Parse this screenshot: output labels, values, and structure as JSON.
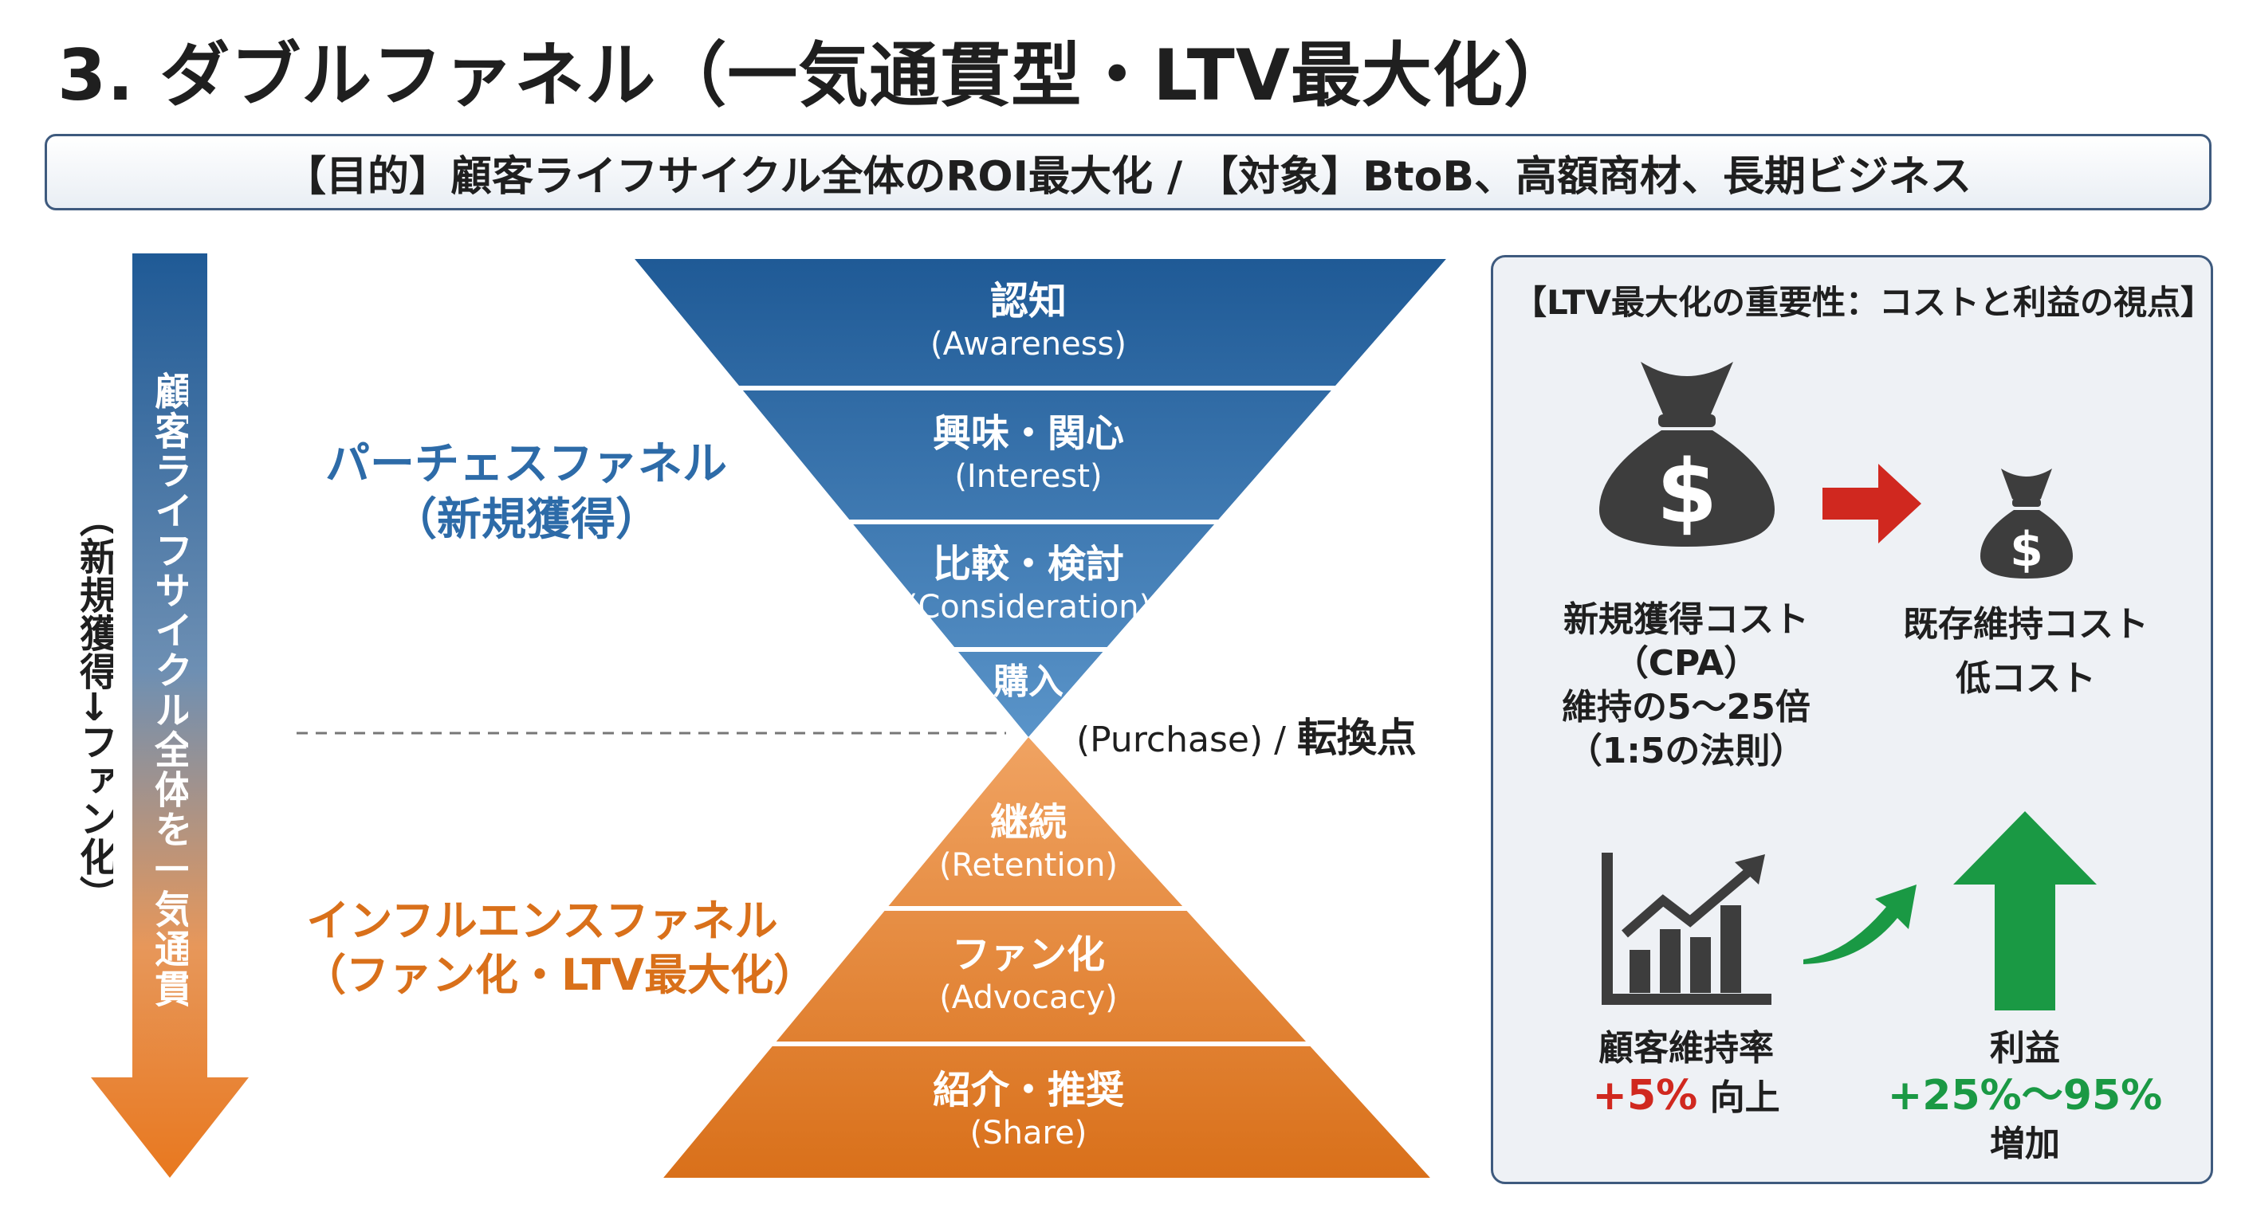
{
  "title": "3. ダブルファネル（一気通貫型・LTV最大化）",
  "purpose_bar": "【目的】顧客ライフサイクル全体のROI最大化 / 【対象】BtoB、高額商材、長期ビジネス",
  "side_arrow": {
    "label": "顧客ライフサイクル全体を一気通貫",
    "sublabel": "（新規獲得→ファン化）"
  },
  "colors": {
    "funnel_blue_dark": "#1f5a96",
    "funnel_blue_light": "#5a94c9",
    "funnel_orange_light": "#f0a362",
    "funnel_orange_dark": "#d9701a",
    "up_arrow_green": "#1a9944",
    "right_arrow_red": "#d0281f",
    "icon_gray": "#3d3d3d"
  },
  "purchase_funnel": {
    "title_line1": "パーチェスファネル",
    "title_line2": "（新規獲得）",
    "stages": [
      {
        "jp": "認知",
        "en": "(Awareness)"
      },
      {
        "jp": "興味・関心",
        "en": "(Interest)"
      },
      {
        "jp": "比較・検討",
        "en": "(Consideration)"
      },
      {
        "jp": "購入",
        "en": ""
      }
    ]
  },
  "pivot": {
    "en": "(Purchase)",
    "separator": " / ",
    "jp": "転換点"
  },
  "influence_funnel": {
    "title_line1": "インフルエンスファネル",
    "title_line2": "（ファン化・LTV最大化）",
    "stages": [
      {
        "jp": "継続",
        "en": "(Retention)"
      },
      {
        "jp": "ファン化",
        "en": "(Advocacy)"
      },
      {
        "jp": "紹介・推奨",
        "en": "(Share)"
      }
    ]
  },
  "ltv_panel": {
    "title": "【LTV最大化の重要性：コストと利益の視点】",
    "new_cost": {
      "icon": "money-bag-icon",
      "line1": "新規獲得コスト",
      "line2": "（CPA）",
      "line3": "維持の5〜25倍",
      "line4": "（1:5の法則）"
    },
    "existing_cost": {
      "icon": "money-bag-icon",
      "line1": "既存維持コスト",
      "line2": "低コスト"
    },
    "retention": {
      "icon": "bar-chart-growth-icon",
      "label": "顧客維持率",
      "value": "+5%",
      "suffix": " 向上"
    },
    "profit": {
      "icon": "up-arrow-icon",
      "label": "利益",
      "value": "+25%〜95%",
      "suffix": "増加"
    }
  }
}
